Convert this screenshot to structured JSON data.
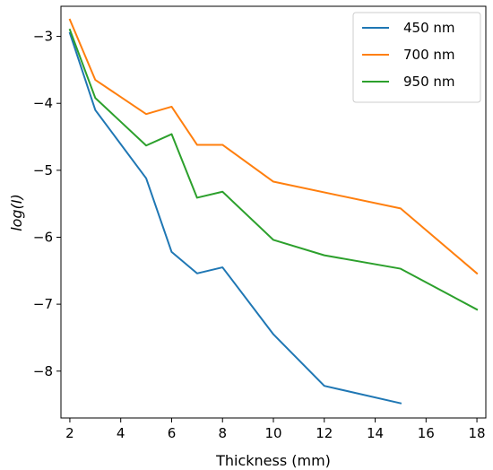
{
  "chart_data": {
    "type": "line",
    "title": "",
    "xlabel": "Thickness (mm)",
    "ylabel": "log(I)",
    "xlim": [
      1.65,
      18.35
    ],
    "ylim": [
      -8.7,
      -2.55
    ],
    "xticks": [
      2,
      4,
      6,
      8,
      10,
      12,
      14,
      16,
      18
    ],
    "yticks": [
      -8,
      -7,
      -6,
      -5,
      -4,
      -3
    ],
    "xtick_labels": [
      "2",
      "4",
      "6",
      "8",
      "10",
      "12",
      "14",
      "16",
      "18"
    ],
    "ytick_labels": [
      "−8",
      "−7",
      "−6",
      "−5",
      "−4",
      "−3"
    ],
    "grid": false,
    "legend_position": "top-right",
    "series": [
      {
        "name": "450 nm",
        "color": "#1f77b4",
        "x": [
          2,
          3,
          5,
          6,
          7,
          8,
          10,
          12,
          15
        ],
        "y": [
          -2.95,
          -4.1,
          -5.12,
          -6.22,
          -6.54,
          -6.45,
          -7.45,
          -8.22,
          -8.48
        ]
      },
      {
        "name": "700 nm",
        "color": "#ff7f0e",
        "x": [
          2,
          3,
          5,
          6,
          7,
          8,
          10,
          15,
          18
        ],
        "y": [
          -2.75,
          -3.65,
          -4.16,
          -4.05,
          -4.62,
          -4.62,
          -5.17,
          -5.57,
          -6.54
        ]
      },
      {
        "name": "950 nm",
        "color": "#2ca02c",
        "x": [
          2,
          3,
          5,
          6,
          7,
          8,
          10,
          12,
          15,
          18
        ],
        "y": [
          -2.9,
          -3.92,
          -4.63,
          -4.46,
          -5.41,
          -5.32,
          -6.04,
          -6.27,
          -6.47,
          -7.08
        ]
      }
    ]
  }
}
